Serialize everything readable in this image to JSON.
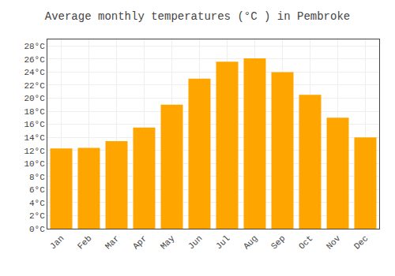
{
  "chart_data": {
    "type": "bar",
    "title": "Average monthly temperatures (°C ) in Pembroke",
    "categories": [
      "Jan",
      "Feb",
      "Mar",
      "Apr",
      "May",
      "Jun",
      "Jul",
      "Aug",
      "Sep",
      "Oct",
      "Nov",
      "Dec"
    ],
    "values": [
      12.3,
      12.4,
      13.4,
      15.5,
      19.0,
      23.0,
      25.6,
      26.1,
      24.0,
      20.5,
      17.0,
      14.0
    ],
    "color": "#FFA500",
    "ylim": [
      0,
      29
    ],
    "yticks": [
      {
        "value": 0,
        "label": "0°C"
      },
      {
        "value": 2,
        "label": "2°C"
      },
      {
        "value": 4,
        "label": "4°C"
      },
      {
        "value": 6,
        "label": "6°C"
      },
      {
        "value": 8,
        "label": "8°C"
      },
      {
        "value": 10,
        "label": "10°C"
      },
      {
        "value": 12,
        "label": "12°C"
      },
      {
        "value": 14,
        "label": "14°C"
      },
      {
        "value": 16,
        "label": "16°C"
      },
      {
        "value": 18,
        "label": "18°C"
      },
      {
        "value": 20,
        "label": "20°C"
      },
      {
        "value": 22,
        "label": "22°C"
      },
      {
        "value": 24,
        "label": "24°C"
      },
      {
        "value": 26,
        "label": "26°C"
      },
      {
        "value": 28,
        "label": "28°C"
      }
    ],
    "grid": true
  }
}
